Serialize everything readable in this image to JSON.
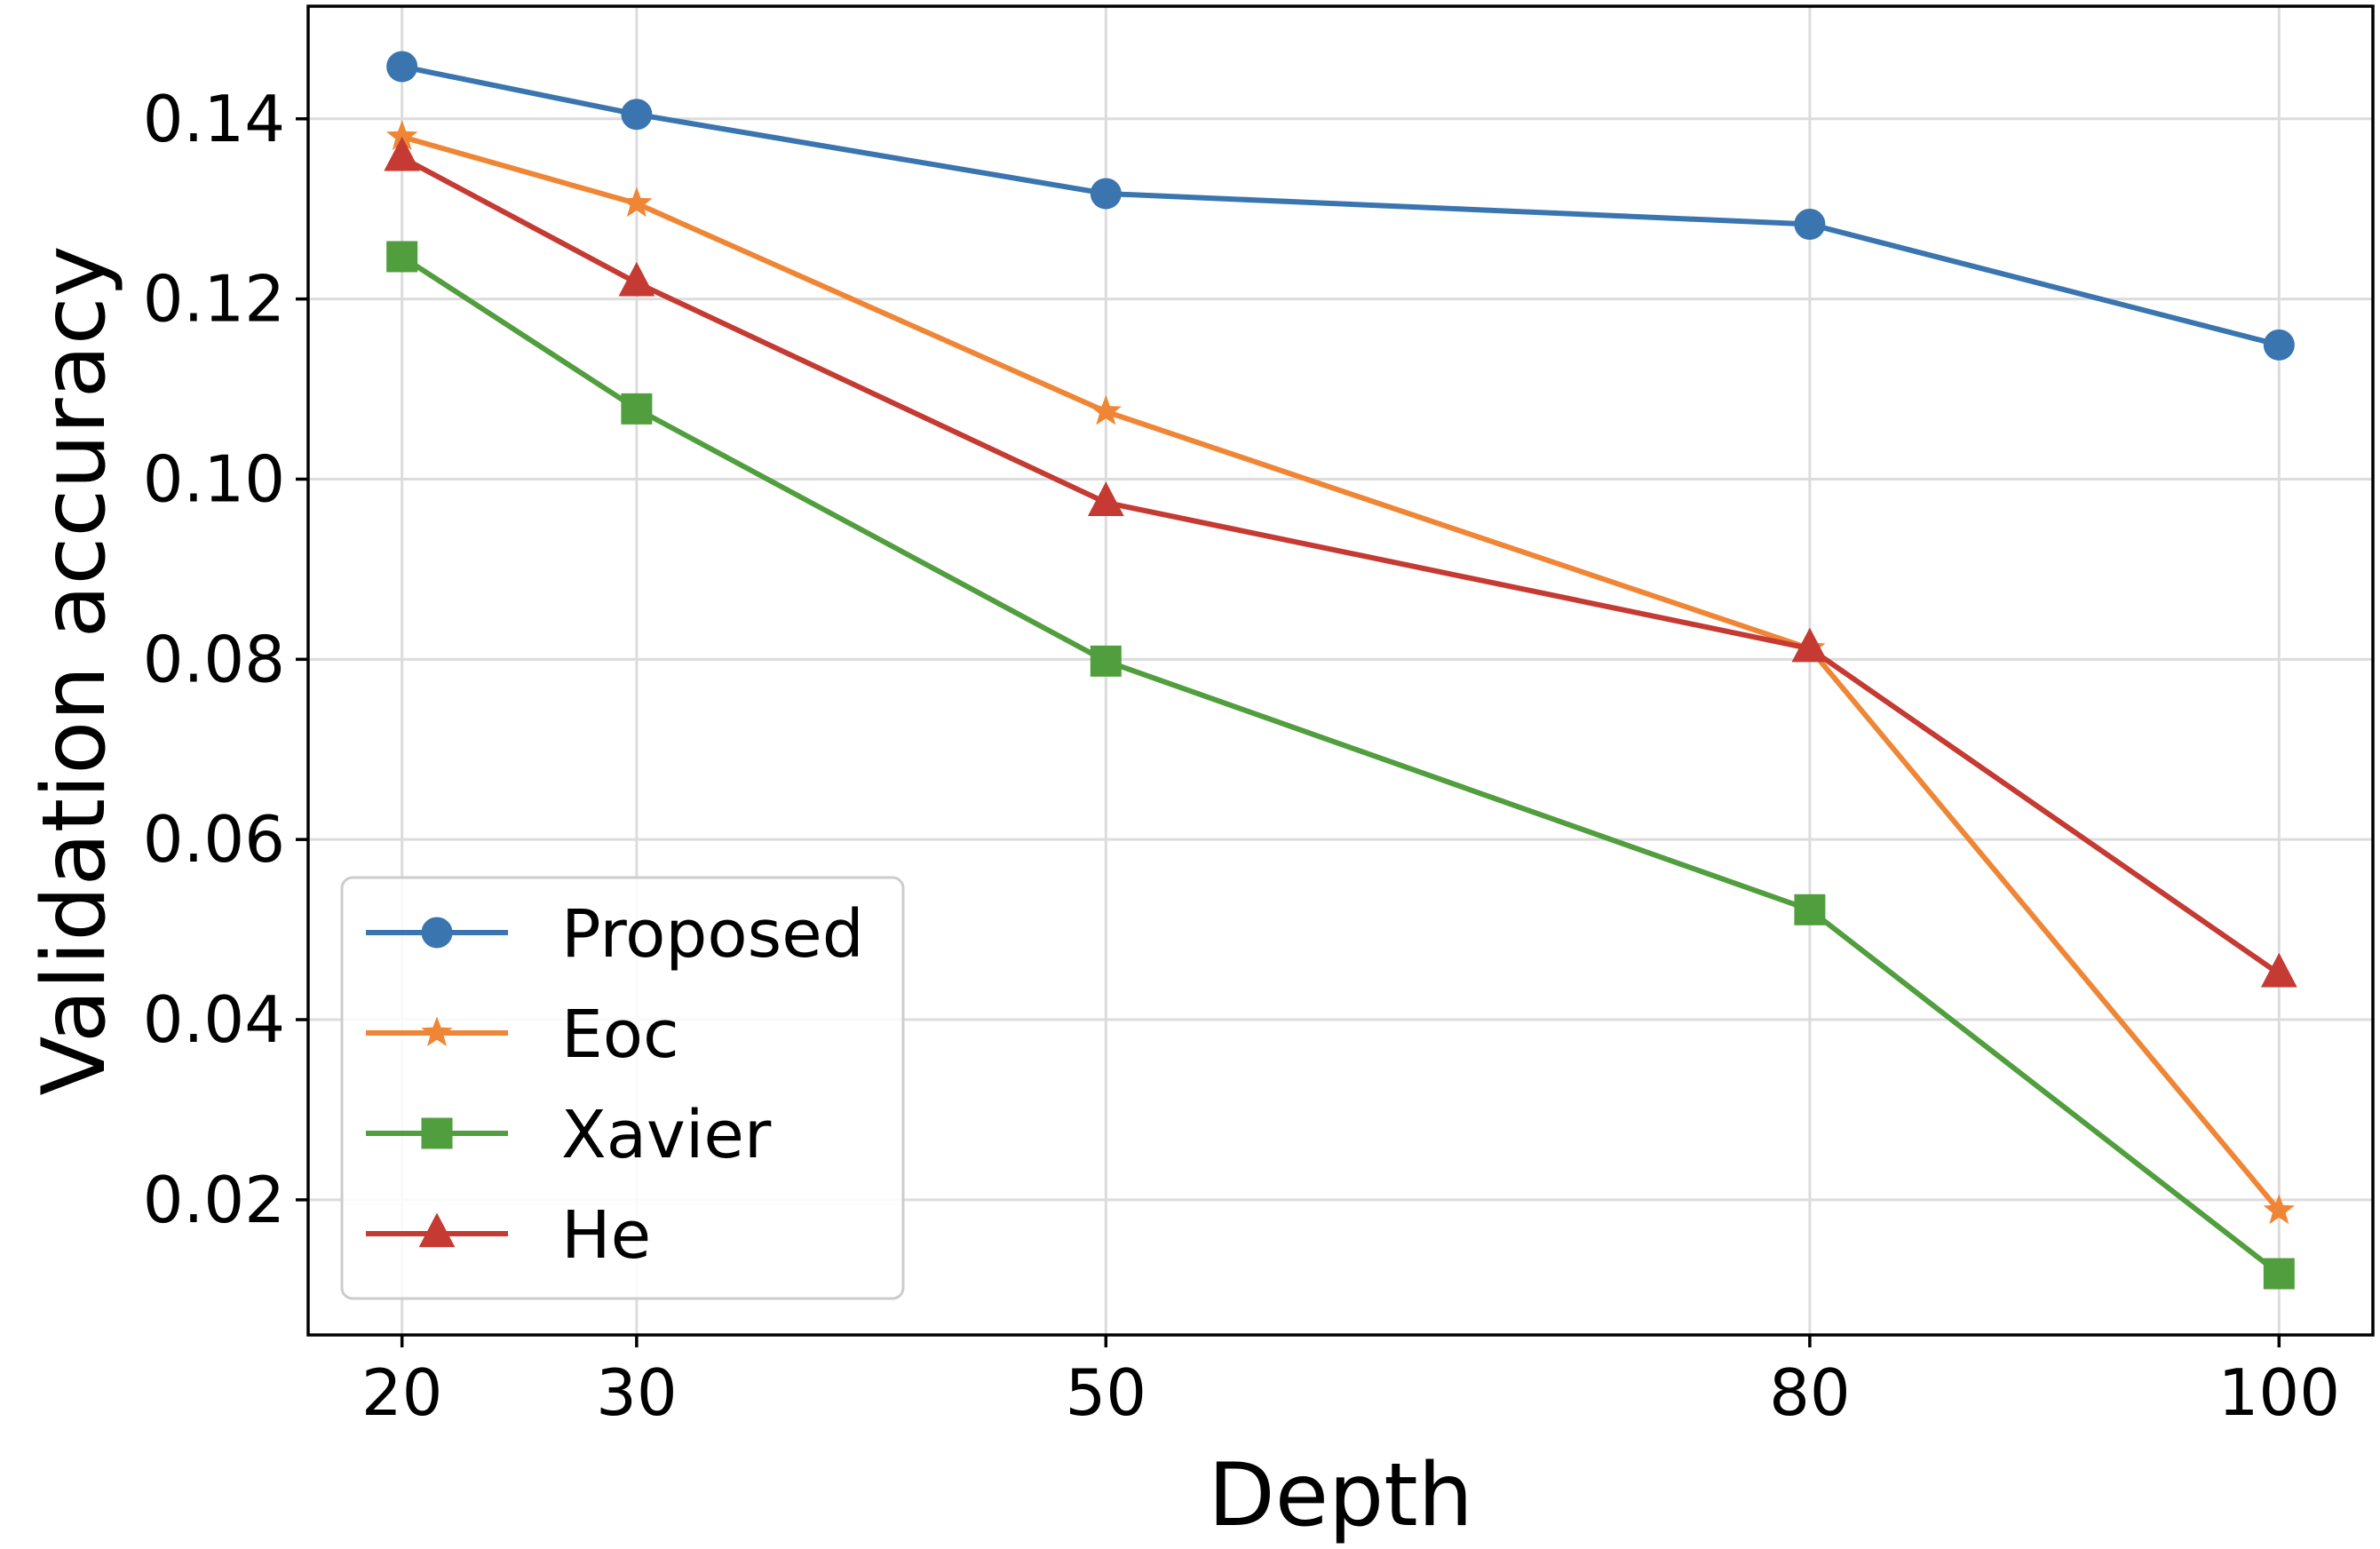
{
  "chart_data": {
    "type": "line",
    "title": "",
    "xlabel": "Depth",
    "ylabel": "Validation accuracy",
    "x": [
      20,
      30,
      50,
      80,
      100
    ],
    "xticks": [
      "20",
      "30",
      "50",
      "80",
      "100"
    ],
    "yticks": [
      "0.02",
      "0.04",
      "0.06",
      "0.08",
      "0.10",
      "0.12",
      "0.14"
    ],
    "ytick_values": [
      0.02,
      0.04,
      0.06,
      0.08,
      0.1,
      0.12,
      0.14
    ],
    "xlim": [
      16,
      104
    ],
    "ylim": [
      0.005,
      0.1525
    ],
    "grid": true,
    "legend_position": "lower-left",
    "series": [
      {
        "name": "Proposed",
        "marker": "circle",
        "color": "#3a75b0",
        "values": [
          0.1458,
          0.1405,
          0.1317,
          0.1283,
          0.1149
        ]
      },
      {
        "name": "Eoc",
        "marker": "star",
        "color": "#ef8636",
        "values": [
          0.138,
          0.1306,
          0.1075,
          0.0812,
          0.0188
        ]
      },
      {
        "name": "Xavier",
        "marker": "square",
        "color": "#519e3e",
        "values": [
          0.1247,
          0.1078,
          0.0798,
          0.0522,
          0.0118
        ]
      },
      {
        "name": "He",
        "marker": "triangle",
        "color": "#c53a32",
        "values": [
          0.1357,
          0.1218,
          0.0974,
          0.0812,
          0.0451
        ]
      }
    ]
  }
}
